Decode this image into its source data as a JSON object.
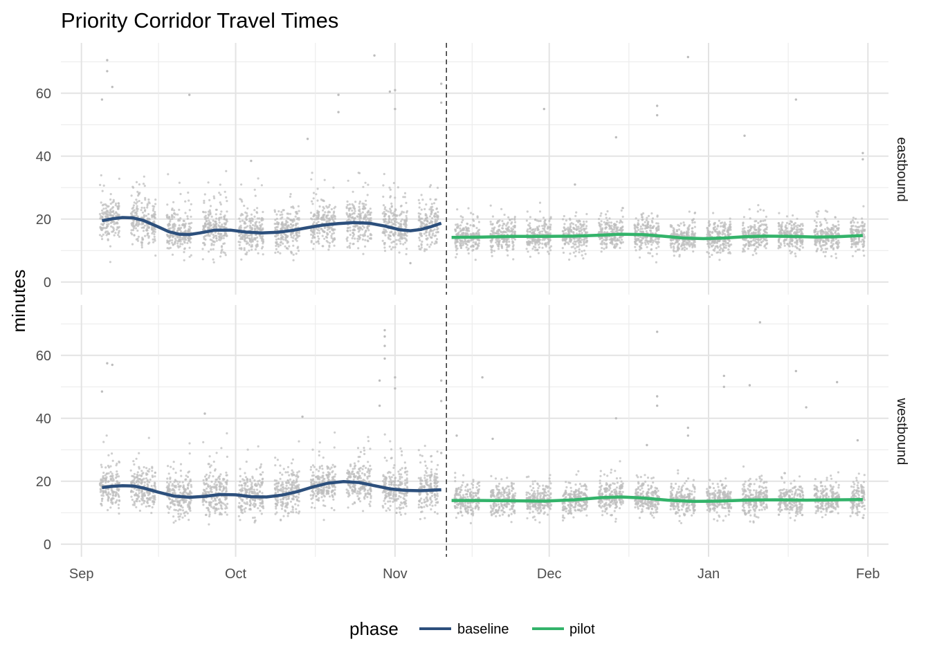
{
  "chart_data": {
    "type": "scatter",
    "title": "Priority Corridor Travel Times",
    "ylabel": "minutes",
    "xlabel": "",
    "x_range": [
      "2023-08-28",
      "2024-02-05"
    ],
    "y_range": [
      -4,
      76
    ],
    "y_ticks": [
      0,
      20,
      40,
      60
    ],
    "x_ticks": [
      {
        "date": "2023-09-01",
        "label": "Sep"
      },
      {
        "date": "2023-10-01",
        "label": "Oct"
      },
      {
        "date": "2023-11-01",
        "label": "Nov"
      },
      {
        "date": "2023-12-01",
        "label": "Dec"
      },
      {
        "date": "2024-01-01",
        "label": "Jan"
      },
      {
        "date": "2024-02-01",
        "label": "Feb"
      }
    ],
    "pilot_start": "2023-11-11",
    "point_color": "#bdbdbd",
    "legend": {
      "title": "phase",
      "position": "bottom",
      "entries": [
        {
          "label": "baseline",
          "color": "#2c4f7c"
        },
        {
          "label": "pilot",
          "color": "#33b36a"
        }
      ]
    },
    "panels": [
      {
        "label": "eastbound",
        "baseline_smooth": [
          [
            "2023-09-05",
            19.5
          ],
          [
            "2023-09-07",
            20.1
          ],
          [
            "2023-09-09",
            20.5
          ],
          [
            "2023-09-11",
            20.4
          ],
          [
            "2023-09-13",
            19.6
          ],
          [
            "2023-09-16",
            17.5
          ],
          [
            "2023-09-18",
            16.0
          ],
          [
            "2023-09-20",
            15.2
          ],
          [
            "2023-09-22",
            15.1
          ],
          [
            "2023-09-24",
            15.6
          ],
          [
            "2023-09-27",
            16.5
          ],
          [
            "2023-09-30",
            16.5
          ],
          [
            "2023-10-03",
            15.9
          ],
          [
            "2023-10-06",
            15.6
          ],
          [
            "2023-10-09",
            15.8
          ],
          [
            "2023-10-12",
            16.4
          ],
          [
            "2023-10-15",
            17.3
          ],
          [
            "2023-10-18",
            18.1
          ],
          [
            "2023-10-21",
            18.6
          ],
          [
            "2023-10-24",
            18.9
          ],
          [
            "2023-10-27",
            18.7
          ],
          [
            "2023-10-30",
            17.8
          ],
          [
            "2023-11-02",
            16.6
          ],
          [
            "2023-11-04",
            16.3
          ],
          [
            "2023-11-06",
            16.7
          ],
          [
            "2023-11-08",
            17.6
          ],
          [
            "2023-11-10",
            18.7
          ]
        ],
        "pilot_smooth": [
          [
            "2023-11-12",
            14.2
          ],
          [
            "2023-11-18",
            14.3
          ],
          [
            "2023-11-24",
            14.5
          ],
          [
            "2023-11-30",
            14.5
          ],
          [
            "2023-12-06",
            14.6
          ],
          [
            "2023-12-11",
            14.9
          ],
          [
            "2023-12-15",
            15.2
          ],
          [
            "2023-12-19",
            15.1
          ],
          [
            "2023-12-23",
            14.6
          ],
          [
            "2023-12-27",
            14.0
          ],
          [
            "2023-12-31",
            13.8
          ],
          [
            "2024-01-04",
            14.0
          ],
          [
            "2024-01-08",
            14.4
          ],
          [
            "2024-01-12",
            14.6
          ],
          [
            "2024-01-17",
            14.5
          ],
          [
            "2024-01-22",
            14.3
          ],
          [
            "2024-01-26",
            14.4
          ],
          [
            "2024-01-31",
            14.8
          ]
        ],
        "day_outliers": [
          [
            "2023-09-06",
            70.5
          ],
          [
            "2023-09-06",
            67.0
          ],
          [
            "2023-09-07",
            62.0
          ],
          [
            "2023-09-05",
            58.0
          ],
          [
            "2023-09-22",
            59.5
          ],
          [
            "2023-10-04",
            38.5
          ],
          [
            "2023-10-15",
            45.5
          ],
          [
            "2023-10-21",
            59.5
          ],
          [
            "2023-10-21",
            54.0
          ],
          [
            "2023-10-28",
            72.0
          ],
          [
            "2023-10-31",
            60.5
          ],
          [
            "2023-11-01",
            61.0
          ],
          [
            "2023-11-01",
            55.0
          ],
          [
            "2023-11-04",
            6.0
          ],
          [
            "2023-11-10",
            63.0
          ],
          [
            "2023-11-10",
            57.0
          ],
          [
            "2023-11-30",
            55.0
          ],
          [
            "2023-12-06",
            31.0
          ],
          [
            "2023-12-14",
            46.0
          ],
          [
            "2023-12-22",
            56.0
          ],
          [
            "2023-12-22",
            53.0
          ],
          [
            "2023-12-28",
            71.5
          ],
          [
            "2024-01-08",
            46.5
          ],
          [
            "2024-01-18",
            58.0
          ],
          [
            "2024-01-31",
            41.0
          ],
          [
            "2024-01-31",
            39.0
          ]
        ]
      },
      {
        "label": "westbound",
        "baseline_smooth": [
          [
            "2023-09-05",
            18.0
          ],
          [
            "2023-09-07",
            18.4
          ],
          [
            "2023-09-09",
            18.6
          ],
          [
            "2023-09-11",
            18.5
          ],
          [
            "2023-09-13",
            17.9
          ],
          [
            "2023-09-16",
            16.5
          ],
          [
            "2023-09-19",
            15.3
          ],
          [
            "2023-09-22",
            14.9
          ],
          [
            "2023-09-25",
            15.2
          ],
          [
            "2023-09-28",
            15.8
          ],
          [
            "2023-10-01",
            15.7
          ],
          [
            "2023-10-04",
            15.1
          ],
          [
            "2023-10-07",
            15.0
          ],
          [
            "2023-10-10",
            15.6
          ],
          [
            "2023-10-13",
            16.7
          ],
          [
            "2023-10-16",
            18.2
          ],
          [
            "2023-10-19",
            19.4
          ],
          [
            "2023-10-22",
            19.9
          ],
          [
            "2023-10-25",
            19.6
          ],
          [
            "2023-10-28",
            18.6
          ],
          [
            "2023-10-31",
            17.6
          ],
          [
            "2023-11-03",
            17.1
          ],
          [
            "2023-11-06",
            17.0
          ],
          [
            "2023-11-10",
            17.3
          ]
        ],
        "pilot_smooth": [
          [
            "2023-11-12",
            13.9
          ],
          [
            "2023-11-18",
            13.9
          ],
          [
            "2023-11-24",
            13.8
          ],
          [
            "2023-11-30",
            13.7
          ],
          [
            "2023-12-06",
            14.1
          ],
          [
            "2023-12-11",
            14.8
          ],
          [
            "2023-12-15",
            15.0
          ],
          [
            "2023-12-19",
            14.7
          ],
          [
            "2023-12-24",
            14.0
          ],
          [
            "2023-12-29",
            13.6
          ],
          [
            "2024-01-03",
            13.7
          ],
          [
            "2024-01-08",
            14.0
          ],
          [
            "2024-01-14",
            14.1
          ],
          [
            "2024-01-20",
            14.0
          ],
          [
            "2024-01-26",
            14.1
          ],
          [
            "2024-01-31",
            14.2
          ]
        ],
        "day_outliers": [
          [
            "2023-09-06",
            57.5
          ],
          [
            "2023-09-07",
            57.0
          ],
          [
            "2023-09-05",
            48.5
          ],
          [
            "2023-09-25",
            41.5
          ],
          [
            "2023-10-14",
            40.5
          ],
          [
            "2023-10-29",
            52.0
          ],
          [
            "2023-10-29",
            44.0
          ],
          [
            "2023-10-30",
            68.0
          ],
          [
            "2023-10-30",
            66.0
          ],
          [
            "2023-10-30",
            63.0
          ],
          [
            "2023-10-30",
            59.0
          ],
          [
            "2023-11-01",
            53.0
          ],
          [
            "2023-11-01",
            49.5
          ],
          [
            "2023-11-10",
            52.0
          ],
          [
            "2023-11-10",
            45.5
          ],
          [
            "2023-11-10",
            29.0
          ],
          [
            "2023-11-13",
            34.5
          ],
          [
            "2023-11-18",
            53.0
          ],
          [
            "2023-11-20",
            33.5
          ],
          [
            "2023-12-14",
            40.0
          ],
          [
            "2023-12-20",
            31.5
          ],
          [
            "2023-12-22",
            67.5
          ],
          [
            "2023-12-22",
            47.0
          ],
          [
            "2023-12-22",
            44.0
          ],
          [
            "2023-12-28",
            37.0
          ],
          [
            "2023-12-28",
            34.5
          ],
          [
            "2024-01-01",
            12.5
          ],
          [
            "2024-01-04",
            53.5
          ],
          [
            "2024-01-04",
            50.0
          ],
          [
            "2024-01-09",
            50.5
          ],
          [
            "2024-01-11",
            70.5
          ],
          [
            "2024-01-18",
            55.0
          ],
          [
            "2024-01-20",
            43.5
          ],
          [
            "2024-01-26",
            51.5
          ],
          [
            "2024-01-30",
            33.0
          ]
        ]
      }
    ]
  }
}
